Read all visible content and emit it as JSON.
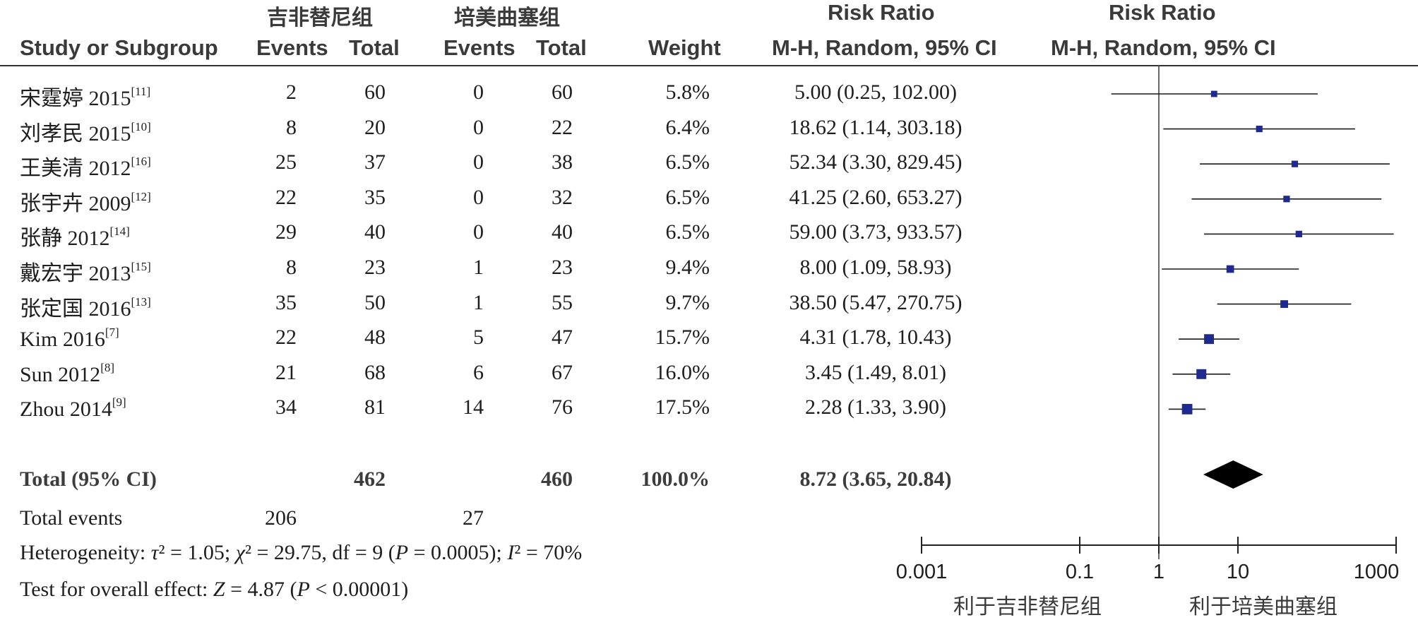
{
  "header": {
    "group1": "吉非替尼组",
    "group2": "培美曲塞组",
    "rr_title": "Risk Ratio",
    "rr_title2": "Risk Ratio",
    "study_col": "Study or Subgroup",
    "events1": "Events",
    "total1": "Total",
    "events2": "Events",
    "total2": "Total",
    "weight": "Weight",
    "method": "M-H, Random, 95% CI",
    "method2": "M-H, Random, 95% CI"
  },
  "chart_data": {
    "type": "forest",
    "xscale": "log",
    "xlim": [
      0.001,
      1000
    ],
    "xticks": [
      "0.001",
      "0.1",
      "1",
      "10",
      "1000"
    ],
    "favors_left": "利于吉非替尼组",
    "favors_right": "利于培美曲塞组",
    "studies": [
      {
        "name": "宋霆婷 2015",
        "ref": "[11]",
        "e1": 2,
        "t1": 60,
        "e2": 0,
        "t2": 60,
        "weight": "5.8%",
        "ci_text": "5.00 (0.25, 102.00)",
        "rr": 5.0,
        "lo": 0.25,
        "hi": 102.0
      },
      {
        "name": "刘孝民 2015",
        "ref": "[10]",
        "e1": 8,
        "t1": 20,
        "e2": 0,
        "t2": 22,
        "weight": "6.4%",
        "ci_text": "18.62 (1.14, 303.18)",
        "rr": 18.62,
        "lo": 1.14,
        "hi": 303.18
      },
      {
        "name": "王美清 2012",
        "ref": "[16]",
        "e1": 25,
        "t1": 37,
        "e2": 0,
        "t2": 38,
        "weight": "6.5%",
        "ci_text": "52.34 (3.30, 829.45)",
        "rr": 52.34,
        "lo": 3.3,
        "hi": 829.45
      },
      {
        "name": "张宇卉 2009",
        "ref": "[12]",
        "e1": 22,
        "t1": 35,
        "e2": 0,
        "t2": 32,
        "weight": "6.5%",
        "ci_text": "41.25 (2.60, 653.27)",
        "rr": 41.25,
        "lo": 2.6,
        "hi": 653.27
      },
      {
        "name": "张静 2012",
        "ref": "[14]",
        "e1": 29,
        "t1": 40,
        "e2": 0,
        "t2": 40,
        "weight": "6.5%",
        "ci_text": "59.00 (3.73, 933.57)",
        "rr": 59.0,
        "lo": 3.73,
        "hi": 933.57
      },
      {
        "name": "戴宏宇 2013",
        "ref": "[15]",
        "e1": 8,
        "t1": 23,
        "e2": 1,
        "t2": 23,
        "weight": "9.4%",
        "ci_text": "8.00 (1.09, 58.93)",
        "rr": 8.0,
        "lo": 1.09,
        "hi": 58.93
      },
      {
        "name": "张定国 2016",
        "ref": "[13]",
        "e1": 35,
        "t1": 50,
        "e2": 1,
        "t2": 55,
        "weight": "9.7%",
        "ci_text": "38.50 (5.47, 270.75)",
        "rr": 38.5,
        "lo": 5.47,
        "hi": 270.75
      },
      {
        "name": "Kim 2016",
        "ref": "[7]",
        "e1": 22,
        "t1": 48,
        "e2": 5,
        "t2": 47,
        "weight": "15.7%",
        "ci_text": "4.31 (1.78, 10.43)",
        "rr": 4.31,
        "lo": 1.78,
        "hi": 10.43
      },
      {
        "name": "Sun 2012",
        "ref": "[8]",
        "e1": 21,
        "t1": 68,
        "e2": 6,
        "t2": 67,
        "weight": "16.0%",
        "ci_text": "3.45 (1.49, 8.01)",
        "rr": 3.45,
        "lo": 1.49,
        "hi": 8.01
      },
      {
        "name": "Zhou 2014",
        "ref": "[9]",
        "e1": 34,
        "t1": 81,
        "e2": 14,
        "t2": 76,
        "weight": "17.5%",
        "ci_text": "2.28 (1.33, 3.90)",
        "rr": 2.28,
        "lo": 1.33,
        "hi": 3.9
      }
    ],
    "total": {
      "label": "Total (95% CI)",
      "t1": 462,
      "t2": 460,
      "weight": "100.0%",
      "ci_text": "8.72 (3.65, 20.84)",
      "rr": 8.72,
      "lo": 3.65,
      "hi": 20.84
    },
    "total_events": {
      "label": "Total events",
      "e1": 206,
      "e2": 27
    }
  }
}
